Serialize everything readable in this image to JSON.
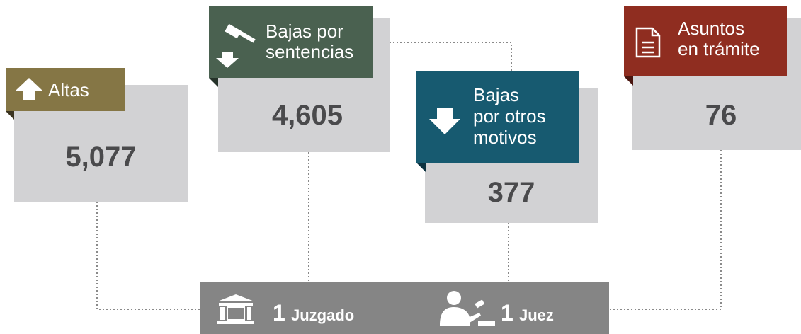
{
  "cards": [
    {
      "label": [
        "Altas"
      ],
      "value": "5,077"
    },
    {
      "label": [
        "Bajas por",
        "sentencias"
      ],
      "value": "4,605"
    },
    {
      "label": [
        "Bajas",
        "por otros",
        "motivos"
      ],
      "value": "377"
    },
    {
      "label": [
        "Asuntos",
        "en trámite"
      ],
      "value": "76"
    }
  ],
  "footer": {
    "court_count": "1",
    "court_label": "Juzgado",
    "judge_count": "1",
    "judge_label": "Juez"
  }
}
